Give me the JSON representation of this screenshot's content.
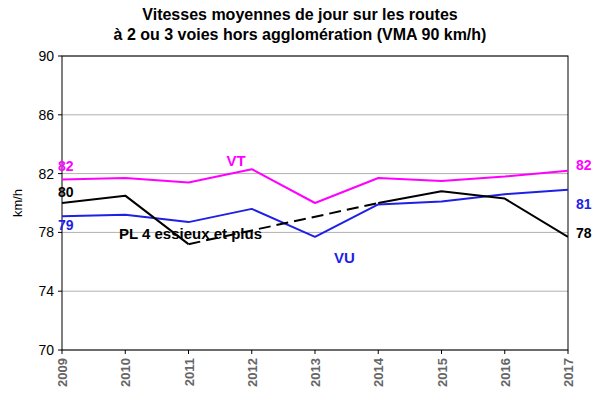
{
  "chart_data": {
    "type": "line",
    "title": "Vitesses moyennes de jour sur les routes",
    "subtitle": "à 2 ou 3 voies hors agglomération (VMA 90 km/h)",
    "y_label": "km/h",
    "categories": [
      "2009",
      "2010",
      "2011",
      "2012",
      "2013",
      "2014",
      "2015",
      "2016",
      "2017"
    ],
    "series": [
      {
        "name": "VT",
        "color": "#ff00ff",
        "values": [
          81.6,
          81.7,
          81.4,
          82.3,
          80.0,
          81.7,
          81.5,
          81.8,
          82.2
        ],
        "value_labels": [
          "82",
          null,
          null,
          null,
          null,
          null,
          null,
          null,
          "82"
        ]
      },
      {
        "name": "VU",
        "color": "#1f1fe6",
        "values": [
          79.1,
          79.2,
          78.7,
          79.6,
          77.7,
          79.9,
          80.1,
          80.6,
          80.9
        ],
        "value_labels": [
          "79",
          null,
          null,
          null,
          null,
          null,
          null,
          null,
          "81"
        ]
      },
      {
        "name": "PL 4 essieux et plus",
        "color": "#000000",
        "values": [
          80.0,
          80.5,
          77.2,
          null,
          null,
          80.0,
          80.8,
          80.3,
          77.7
        ],
        "value_labels": [
          "80",
          null,
          null,
          null,
          null,
          null,
          null,
          null,
          "78"
        ]
      }
    ],
    "ylim": [
      70,
      90
    ],
    "yticks": [
      70,
      74,
      78,
      82,
      86,
      90
    ],
    "grid": true,
    "data_labels": true
  }
}
